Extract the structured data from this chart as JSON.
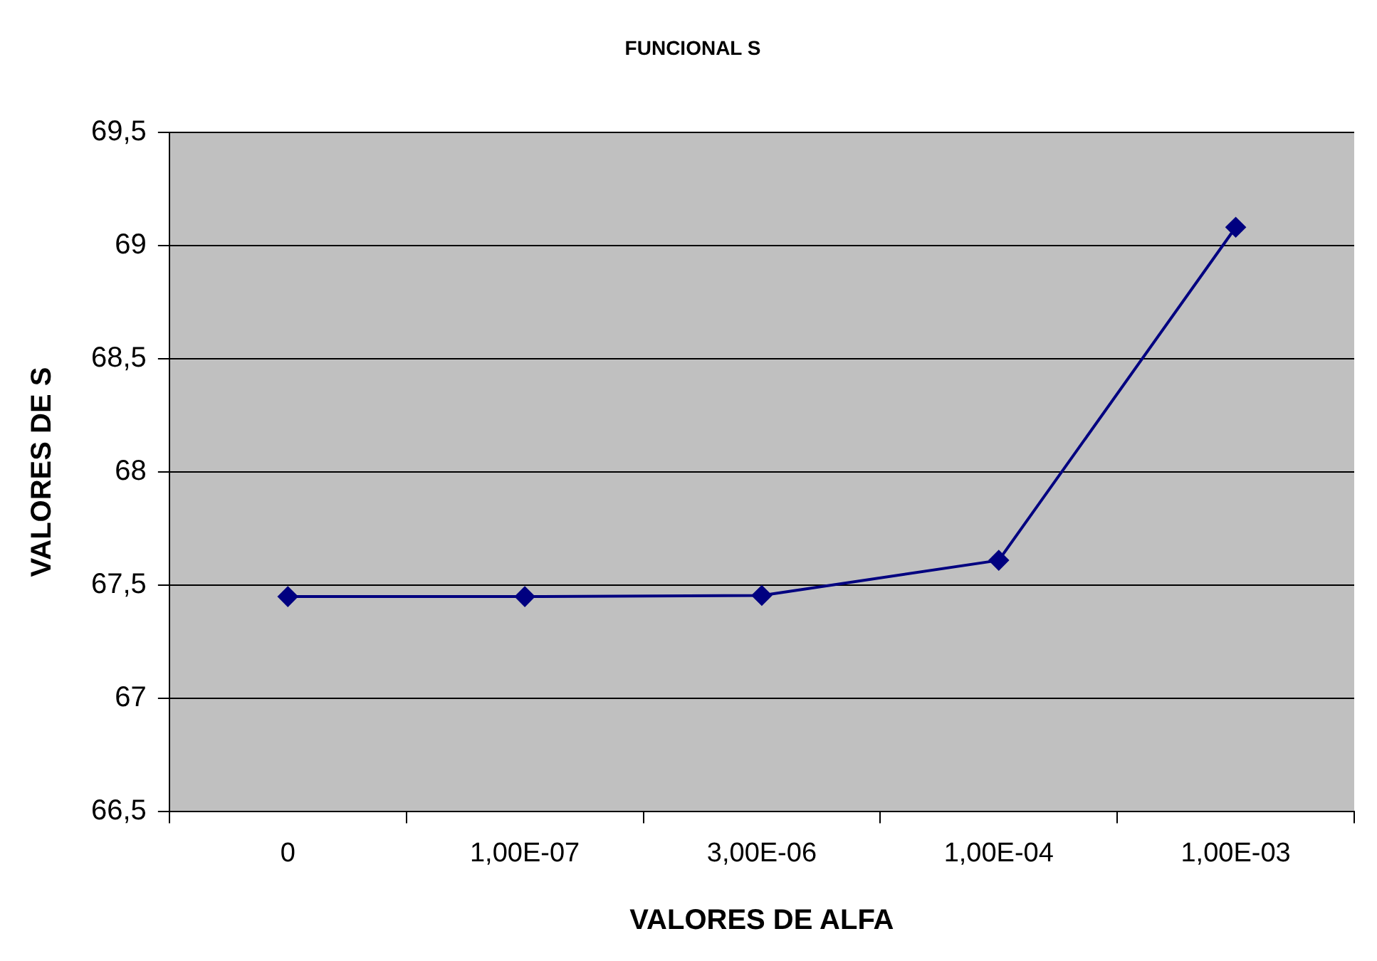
{
  "chart_data": {
    "type": "line",
    "title": "FUNCIONAL S",
    "xlabel": "VALORES DE ALFA",
    "ylabel": "VALORES DE S",
    "categories": [
      "0",
      "1,00E-07",
      "3,00E-06",
      "1,00E-04",
      "1,00E-03"
    ],
    "series": [
      {
        "color": "#000080",
        "values": [
          67.45,
          67.45,
          67.455,
          67.61,
          69.08
        ]
      }
    ],
    "ylim": [
      66.5,
      69.5
    ],
    "yticks": [
      {
        "value": 66.5,
        "label": "66,5"
      },
      {
        "value": 67,
        "label": "67"
      },
      {
        "value": 67.5,
        "label": "67,5"
      },
      {
        "value": 68,
        "label": "68"
      },
      {
        "value": 68.5,
        "label": "68,5"
      },
      {
        "value": 69,
        "label": "69"
      },
      {
        "value": 69.5,
        "label": "69,5"
      }
    ],
    "grid": "y",
    "legend": false,
    "marker": "diamond",
    "line_style": "solid"
  }
}
